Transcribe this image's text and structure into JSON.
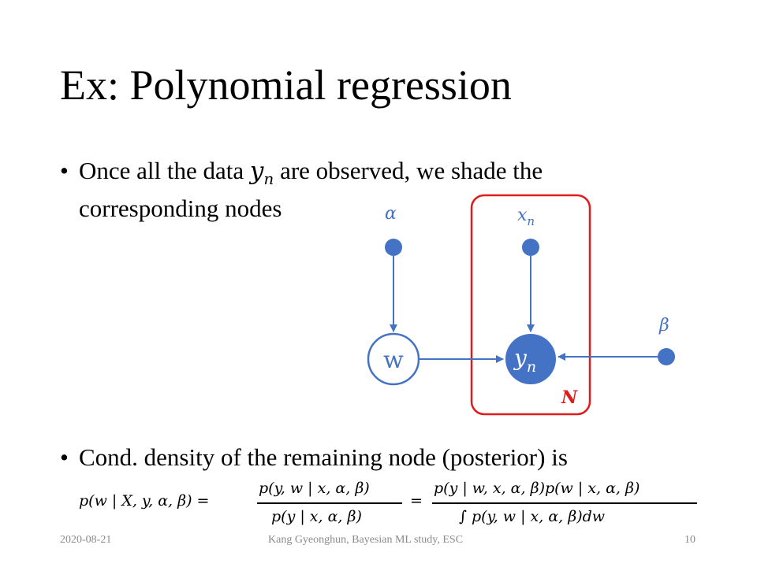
{
  "slide": {
    "title": "Ex: Polynomial regression",
    "bullets": [
      {
        "symbol": "•",
        "text_before": "Once all the data ",
        "math": "y",
        "math_sub": "n",
        "text_after": " are observed, we shade the corresponding nodes"
      },
      {
        "symbol": "•",
        "text": "Cond. density of the remaining node (posterior) is"
      }
    ],
    "equation": {
      "lhs": "p(w | X, y, α, β) =",
      "frac1_num": "p(y, w | x, α, β)",
      "frac1_den": "p(y | x, α, β)",
      "equals": "=",
      "frac2_num": "p(y | w, x, α, β)p(w | x, α, β)",
      "frac2_den": "∫ p(y, w | x, α, β)dw"
    },
    "footer": {
      "date": "2020-08-21",
      "author": "Kang Gyeonghun, Bayesian ML study, ESC",
      "page": "10"
    }
  },
  "diagram": {
    "nodes": {
      "alpha": "α",
      "beta": "β",
      "x": "x",
      "x_sub": "n",
      "w": "w",
      "y": "y",
      "y_sub": "n"
    },
    "plate_label": "N",
    "colors": {
      "node": "#4472c4",
      "plate": "#e01b1b",
      "text": "#000000"
    }
  }
}
